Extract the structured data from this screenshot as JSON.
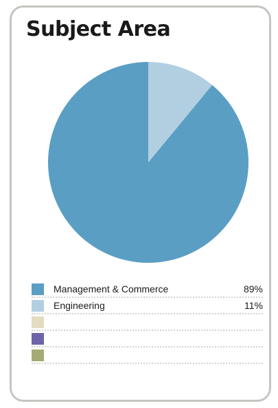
{
  "chart_data": {
    "type": "pie",
    "title": "Subject Area",
    "slices": [
      {
        "label": "Management & Commerce",
        "value": 89,
        "display": "89%",
        "color": "#5a9ec4"
      },
      {
        "label": "Engineering",
        "value": 11,
        "display": "11%",
        "color": "#b2cfe2"
      },
      {
        "label": "",
        "value": 0,
        "display": "",
        "color": "#e3dcc0"
      },
      {
        "label": "",
        "value": 0,
        "display": "",
        "color": "#6e64a8"
      },
      {
        "label": "",
        "value": 0,
        "display": "",
        "color": "#a6aa74"
      }
    ],
    "start": "12 o'clock",
    "direction": "counterclockwise"
  }
}
